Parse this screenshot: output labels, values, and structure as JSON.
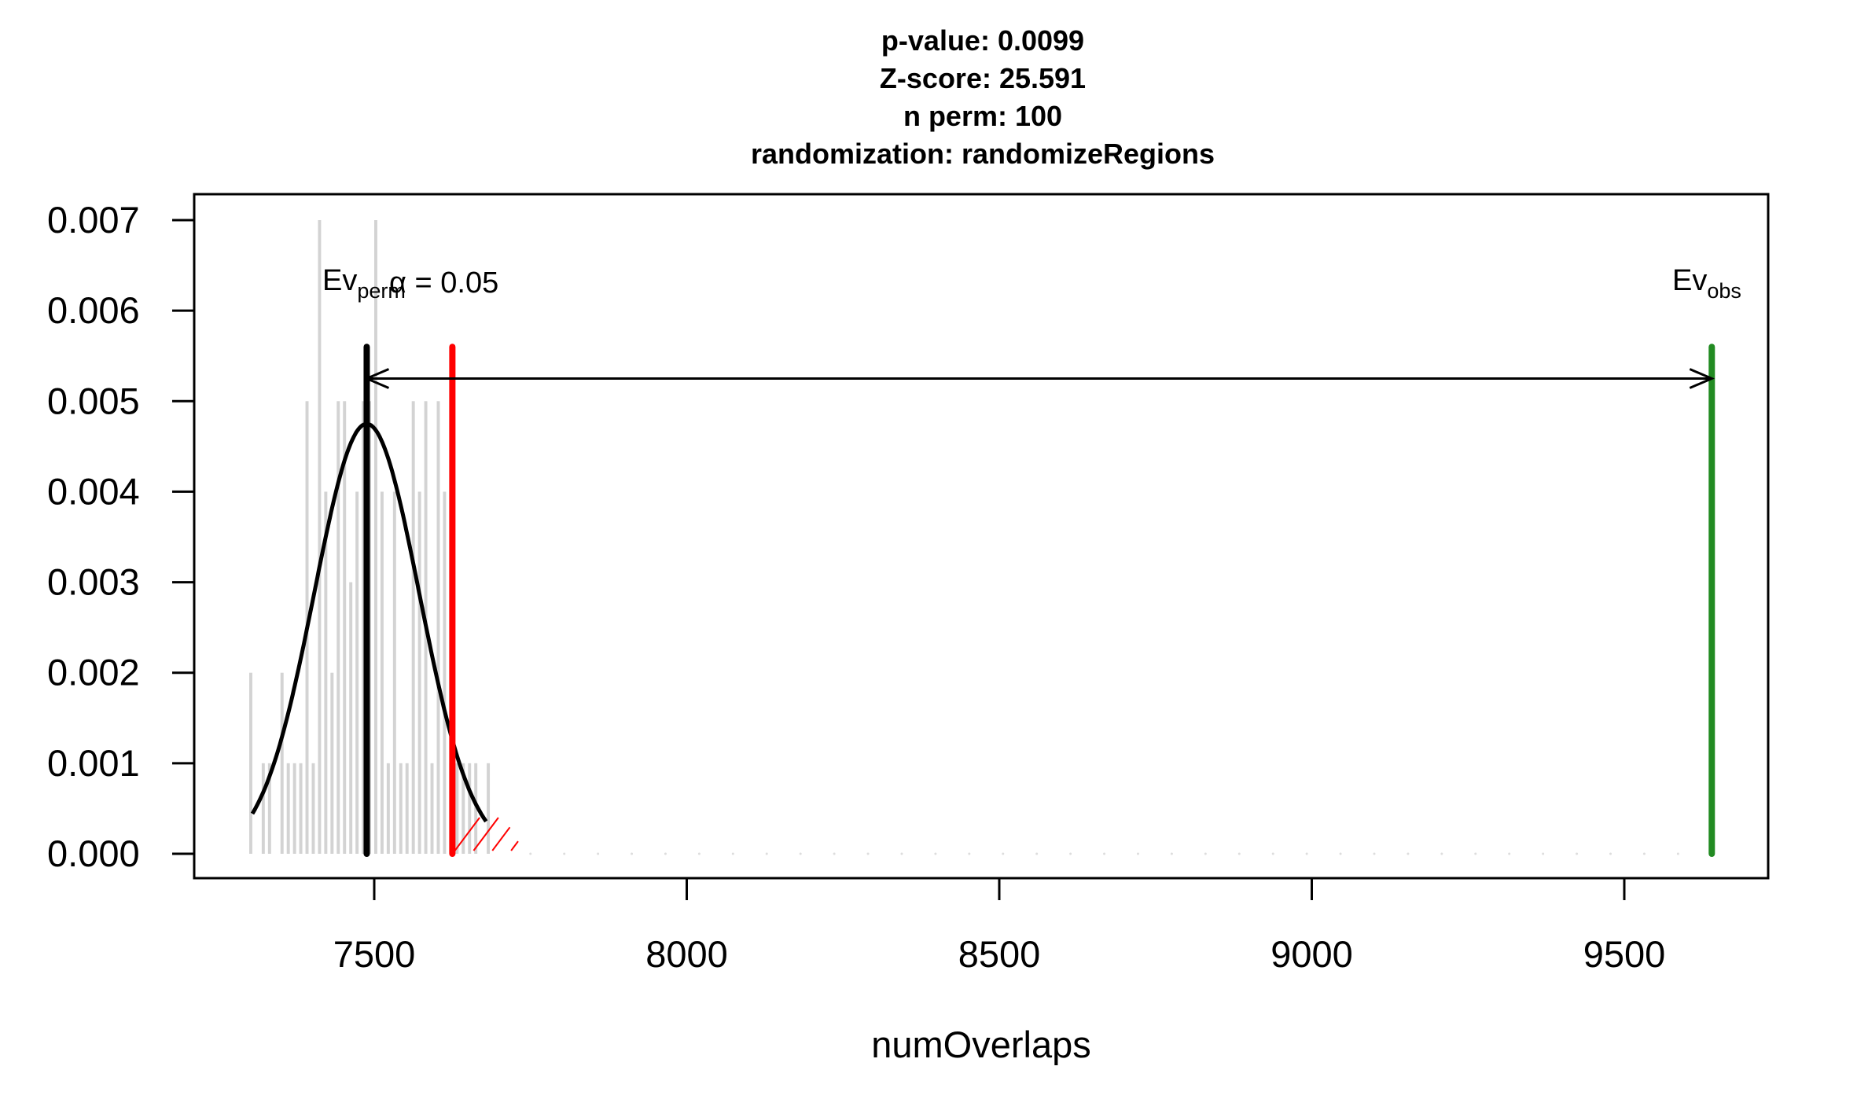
{
  "chart_data": {
    "type": "bar",
    "title_lines": [
      "p-value:  0.0099",
      "Z-score:  25.591",
      "n perm:  100",
      "randomization:  randomizeRegions"
    ],
    "xlabel": "numOverlaps",
    "ylabel": "",
    "xlim": [
      7215,
      9730
    ],
    "ylim": [
      0,
      0.0072
    ],
    "x_ticks": [
      7500,
      8000,
      8500,
      9000,
      9500
    ],
    "x_tick_labels": [
      "7500",
      "8000",
      "8500",
      "9000",
      "9500"
    ],
    "y_ticks": [
      0,
      0.001,
      0.002,
      0.003,
      0.004,
      0.005,
      0.006,
      0.007
    ],
    "y_tick_labels": [
      "0.000",
      "0.001",
      "0.002",
      "0.003",
      "0.004",
      "0.005",
      "0.006",
      "0.007"
    ],
    "histogram": {
      "bin_width": 10,
      "bins_start": [
        7300,
        7310,
        7320,
        7330,
        7340,
        7350,
        7360,
        7370,
        7380,
        7390,
        7400,
        7410,
        7420,
        7430,
        7440,
        7450,
        7460,
        7470,
        7480,
        7490,
        7500,
        7510,
        7520,
        7530,
        7540,
        7550,
        7560,
        7570,
        7580,
        7590,
        7600,
        7610,
        7620,
        7630,
        7640,
        7650,
        7660,
        7670,
        7680
      ],
      "density": [
        0.002,
        0,
        0.001,
        0.001,
        0,
        0.002,
        0.001,
        0.001,
        0.001,
        0.005,
        0.001,
        0.007,
        0.004,
        0.002,
        0.005,
        0.005,
        0.003,
        0.004,
        0.005,
        0.005,
        0.007,
        0.004,
        0.001,
        0.004,
        0.001,
        0.001,
        0.005,
        0.004,
        0.005,
        0.001,
        0.005,
        0.004,
        0.001,
        0.001,
        0.001,
        0.001,
        0.001,
        0,
        0.001
      ],
      "color": "#d3d3d3"
    },
    "normal_curve": {
      "mean": 7488,
      "sd": 84,
      "x_range": [
        7305,
        7680
      ],
      "color": "#000000"
    },
    "lines": [
      {
        "name": "Ev_perm",
        "x": 7488,
        "y_top": 0.0056,
        "color": "#000000"
      },
      {
        "name": "alpha",
        "x": 7625,
        "y_top": 0.0056,
        "color": "#ff0000"
      },
      {
        "name": "Ev_obs",
        "x": 9640,
        "y_top": 0.0056,
        "color": "#228b22"
      }
    ],
    "arrow": {
      "from_x": 7488,
      "to_x": 9640,
      "y": 0.00525
    },
    "annotations": {
      "ev_perm_main": "Ev",
      "ev_perm_sub": "perm",
      "alpha_label": "α = 0.05",
      "ev_obs_main": "Ev",
      "ev_obs_sub": "obs"
    },
    "grid": false
  }
}
